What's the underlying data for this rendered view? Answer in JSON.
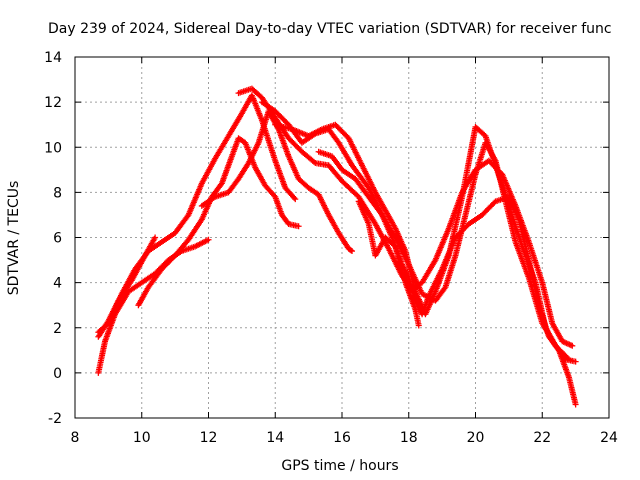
{
  "chart_data": {
    "type": "scatter",
    "title": "Day 239 of 2024, Sidereal Day-to-day VTEC variation (SDTVAR) for receiver func",
    "xlabel": "GPS time / hours",
    "ylabel": "SDTVAR / TECUs",
    "xlim": [
      8,
      24
    ],
    "ylim": [
      -2,
      14
    ],
    "xticks": [
      "8",
      "10",
      "12",
      "14",
      "16",
      "18",
      "20",
      "22",
      "24"
    ],
    "yticks": [
      "-2",
      "0",
      "2",
      "4",
      "6",
      "8",
      "10",
      "12",
      "14"
    ],
    "grid": true,
    "marker": "+",
    "color": "#ff0000",
    "series": [
      {
        "name": "trace-1",
        "points": [
          [
            8.7,
            1.8
          ],
          [
            9.0,
            2.2
          ],
          [
            9.4,
            3.5
          ],
          [
            9.8,
            4.6
          ],
          [
            10.2,
            5.4
          ],
          [
            10.6,
            5.8
          ],
          [
            11.0,
            6.2
          ],
          [
            11.4,
            7.0
          ],
          [
            11.8,
            8.4
          ],
          [
            12.2,
            9.5
          ],
          [
            12.6,
            10.5
          ],
          [
            13.0,
            11.5
          ],
          [
            13.3,
            12.3
          ],
          [
            13.6,
            11.2
          ],
          [
            14.0,
            9.4
          ],
          [
            14.3,
            8.2
          ],
          [
            14.6,
            7.7
          ]
        ]
      },
      {
        "name": "trace-2",
        "points": [
          [
            8.7,
            1.6
          ],
          [
            9.0,
            2.3
          ],
          [
            9.3,
            3.2
          ],
          [
            9.7,
            4.1
          ],
          [
            10.1,
            5.2
          ],
          [
            10.4,
            6.0
          ]
        ]
      },
      {
        "name": "trace-3",
        "points": [
          [
            8.7,
            0.0
          ],
          [
            8.9,
            1.4
          ],
          [
            9.2,
            2.6
          ],
          [
            9.6,
            3.6
          ],
          [
            10.0,
            4.0
          ],
          [
            10.4,
            4.4
          ],
          [
            10.8,
            5.0
          ],
          [
            11.2,
            5.4
          ],
          [
            11.6,
            5.6
          ],
          [
            12.0,
            5.9
          ]
        ]
      },
      {
        "name": "trace-4",
        "points": [
          [
            9.9,
            3.0
          ],
          [
            10.2,
            3.8
          ],
          [
            10.6,
            4.6
          ],
          [
            11.0,
            5.2
          ],
          [
            11.4,
            5.9
          ],
          [
            11.8,
            6.8
          ],
          [
            12.1,
            7.8
          ],
          [
            12.4,
            8.4
          ],
          [
            12.7,
            9.6
          ],
          [
            12.9,
            10.4
          ],
          [
            13.1,
            10.2
          ],
          [
            13.4,
            9.1
          ],
          [
            13.7,
            8.3
          ],
          [
            14.0,
            7.8
          ],
          [
            14.2,
            7.0
          ],
          [
            14.4,
            6.6
          ],
          [
            14.7,
            6.5
          ]
        ]
      },
      {
        "name": "trace-5",
        "points": [
          [
            11.8,
            7.4
          ],
          [
            12.2,
            7.8
          ],
          [
            12.6,
            8.0
          ],
          [
            12.9,
            8.6
          ],
          [
            13.2,
            9.3
          ],
          [
            13.5,
            10.2
          ],
          [
            13.8,
            11.6
          ],
          [
            14.1,
            10.8
          ],
          [
            14.4,
            9.6
          ],
          [
            14.7,
            8.6
          ],
          [
            15.0,
            8.2
          ],
          [
            15.3,
            7.9
          ],
          [
            15.6,
            7.0
          ],
          [
            15.9,
            6.2
          ],
          [
            16.2,
            5.5
          ],
          [
            16.3,
            5.4
          ]
        ]
      },
      {
        "name": "trace-6",
        "points": [
          [
            12.9,
            12.4
          ],
          [
            13.3,
            12.6
          ],
          [
            13.6,
            12.2
          ],
          [
            14.0,
            11.3
          ],
          [
            14.4,
            10.4
          ],
          [
            14.8,
            9.8
          ],
          [
            15.2,
            9.3
          ],
          [
            15.6,
            9.2
          ],
          [
            16.0,
            8.5
          ],
          [
            16.5,
            7.8
          ],
          [
            17.0,
            6.6
          ],
          [
            17.4,
            5.5
          ],
          [
            17.8,
            4.3
          ],
          [
            18.1,
            3.7
          ],
          [
            18.4,
            4.0
          ],
          [
            18.8,
            5.0
          ],
          [
            19.2,
            6.4
          ],
          [
            19.6,
            8.0
          ],
          [
            20.0,
            9.0
          ],
          [
            20.4,
            9.4
          ],
          [
            20.8,
            8.8
          ],
          [
            21.2,
            7.4
          ],
          [
            21.6,
            5.8
          ],
          [
            22.0,
            4.0
          ],
          [
            22.3,
            2.2
          ],
          [
            22.6,
            1.4
          ],
          [
            22.9,
            1.2
          ]
        ]
      },
      {
        "name": "trace-7",
        "points": [
          [
            13.6,
            12.0
          ],
          [
            14.0,
            11.6
          ],
          [
            14.4,
            11.0
          ],
          [
            14.8,
            10.2
          ],
          [
            15.2,
            10.6
          ],
          [
            15.6,
            10.8
          ],
          [
            15.9,
            10.2
          ],
          [
            16.3,
            9.2
          ],
          [
            16.8,
            8.2
          ],
          [
            17.2,
            7.0
          ],
          [
            17.6,
            6.0
          ],
          [
            18.0,
            4.8
          ],
          [
            18.4,
            3.5
          ],
          [
            18.8,
            3.2
          ],
          [
            19.1,
            3.8
          ],
          [
            19.4,
            5.2
          ],
          [
            19.7,
            7.0
          ],
          [
            20.0,
            8.8
          ],
          [
            20.3,
            10.2
          ],
          [
            20.6,
            9.4
          ],
          [
            20.9,
            7.6
          ],
          [
            21.2,
            5.8
          ],
          [
            21.6,
            4.2
          ],
          [
            22.0,
            2.2
          ],
          [
            22.4,
            1.2
          ],
          [
            22.8,
            0.6
          ]
        ]
      },
      {
        "name": "trace-8",
        "points": [
          [
            14.0,
            11.0
          ],
          [
            14.5,
            10.8
          ],
          [
            15.0,
            10.5
          ],
          [
            15.4,
            10.8
          ],
          [
            15.8,
            11.0
          ],
          [
            16.2,
            10.4
          ],
          [
            16.6,
            9.2
          ],
          [
            17.0,
            8.0
          ],
          [
            17.3,
            7.2
          ],
          [
            17.6,
            6.4
          ],
          [
            17.9,
            5.4
          ],
          [
            18.2,
            3.6
          ],
          [
            18.5,
            2.6
          ],
          [
            18.8,
            3.6
          ],
          [
            19.2,
            5.2
          ],
          [
            19.6,
            7.8
          ],
          [
            20.0,
            10.9
          ],
          [
            20.3,
            10.5
          ],
          [
            20.6,
            9.2
          ],
          [
            21.0,
            7.4
          ],
          [
            21.4,
            5.6
          ],
          [
            21.8,
            4.0
          ],
          [
            22.1,
            2.0
          ],
          [
            22.4,
            1.2
          ],
          [
            22.7,
            0.6
          ],
          [
            23.0,
            0.5
          ]
        ]
      },
      {
        "name": "trace-9",
        "points": [
          [
            15.3,
            9.8
          ],
          [
            15.7,
            9.6
          ],
          [
            16.0,
            9.0
          ],
          [
            16.4,
            8.6
          ],
          [
            16.8,
            7.8
          ],
          [
            17.2,
            7.0
          ],
          [
            17.5,
            6.0
          ],
          [
            17.8,
            4.8
          ],
          [
            18.0,
            4.2
          ],
          [
            18.2,
            3.2
          ],
          [
            18.4,
            2.6
          ],
          [
            18.6,
            3.4
          ],
          [
            19.0,
            4.6
          ],
          [
            19.4,
            6.0
          ],
          [
            19.8,
            6.6
          ],
          [
            20.2,
            7.0
          ],
          [
            20.6,
            7.6
          ],
          [
            21.0,
            7.8
          ],
          [
            21.3,
            6.8
          ],
          [
            21.6,
            5.0
          ],
          [
            21.9,
            3.0
          ],
          [
            22.2,
            1.6
          ],
          [
            22.5,
            1.0
          ],
          [
            22.8,
            -0.2
          ],
          [
            23.0,
            -1.4
          ]
        ]
      },
      {
        "name": "trace-10",
        "points": [
          [
            16.5,
            7.6
          ],
          [
            16.8,
            6.6
          ],
          [
            17.0,
            5.2
          ],
          [
            17.3,
            6.0
          ],
          [
            17.6,
            5.6
          ],
          [
            17.9,
            4.0
          ],
          [
            18.2,
            2.8
          ],
          [
            18.3,
            2.1
          ]
        ]
      }
    ]
  }
}
